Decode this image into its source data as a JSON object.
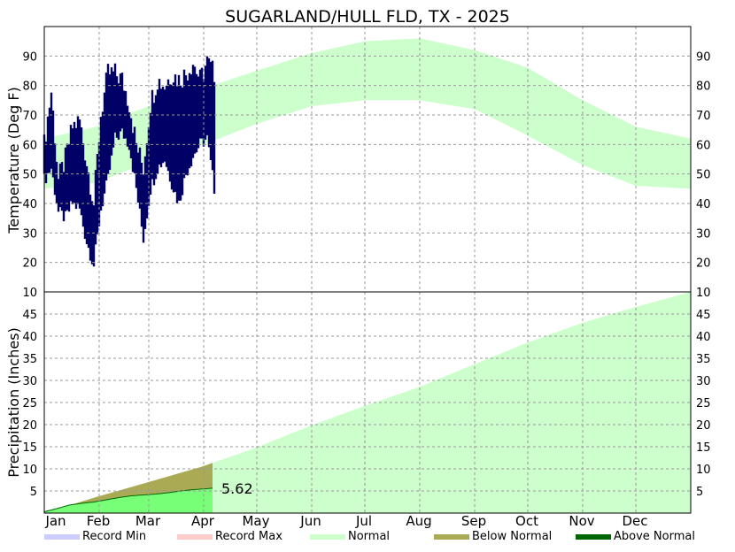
{
  "title": "SUGARLAND/HULL FLD, TX - 2025",
  "colors": {
    "record_min": "#ccccff",
    "record_max": "#ffcccc",
    "normal": "#ccffcc",
    "below_normal": "#aaaa55",
    "above_normal": "#006600",
    "observed_precip": "#77ff77",
    "temp_line": "#000066",
    "grid": "#999999"
  },
  "chart_data": [
    {
      "type": "area",
      "panel": "temperature",
      "ylabel": "Temperature (Deg F)",
      "ylim": [
        10,
        100
      ],
      "yticks": [
        20,
        30,
        40,
        50,
        60,
        70,
        80,
        90
      ],
      "xlim": [
        1,
        366
      ],
      "months": [
        "Jan",
        "Feb",
        "Mar",
        "Apr",
        "May",
        "Jun",
        "Jul",
        "Aug",
        "Sep",
        "Oct",
        "Nov",
        "Dec"
      ],
      "month_start_days": [
        1,
        32,
        60,
        91,
        121,
        152,
        182,
        213,
        244,
        274,
        305,
        335
      ],
      "grid": true,
      "normal_band": {
        "name": "Normal",
        "x": [
          1,
          30,
          60,
          91,
          121,
          152,
          182,
          213,
          244,
          274,
          305,
          335,
          366
        ],
        "low": [
          45,
          47,
          54,
          60,
          67,
          73,
          75,
          75,
          72,
          63,
          53,
          46,
          45
        ],
        "high": [
          62,
          66,
          73,
          79,
          85,
          91,
          95,
          96,
          92,
          86,
          75,
          66,
          62
        ]
      },
      "observed_daily": {
        "x": [
          1,
          5,
          9,
          13,
          17,
          21,
          25,
          29,
          33,
          37,
          41,
          45,
          49,
          53,
          57,
          61,
          65,
          69,
          73,
          77,
          81,
          85,
          89,
          93,
          97
        ],
        "low": [
          48,
          52,
          37,
          35,
          40,
          38,
          27,
          19,
          38,
          48,
          62,
          64,
          60,
          45,
          28,
          45,
          52,
          55,
          47,
          40,
          50,
          56,
          60,
          62,
          45
        ],
        "high": [
          60,
          78,
          48,
          55,
          66,
          68,
          54,
          40,
          70,
          84,
          84,
          82,
          74,
          60,
          52,
          74,
          82,
          80,
          84,
          82,
          84,
          88,
          82,
          88,
          84
        ]
      }
    },
    {
      "type": "area",
      "panel": "precipitation",
      "ylabel": "Precipitation (Inches)",
      "ylim": [
        0,
        50
      ],
      "yticks": [
        5,
        10,
        15,
        20,
        25,
        30,
        35,
        40,
        45
      ],
      "xlim": [
        1,
        366
      ],
      "grid": true,
      "normal_accumulation": {
        "name": "Normal",
        "x": [
          1,
          31,
          59,
          90,
          120,
          151,
          181,
          212,
          243,
          273,
          304,
          334,
          366
        ],
        "values": [
          0,
          3.7,
          6.9,
          10.5,
          14.7,
          19.7,
          24.1,
          28.4,
          33.5,
          38.4,
          42.9,
          46.5,
          50
        ]
      },
      "observed_accumulation": {
        "x": [
          1,
          8,
          15,
          22,
          29,
          36,
          43,
          50,
          57,
          64,
          71,
          78,
          85,
          92,
          96
        ],
        "values": [
          0.3,
          1.0,
          1.8,
          2.2,
          2.5,
          3.0,
          3.5,
          3.9,
          4.1,
          4.3,
          4.6,
          5.0,
          5.3,
          5.5,
          5.62
        ]
      },
      "total_label": "5.62",
      "total_label_x": 97,
      "total_value": 5.62
    }
  ],
  "legend": [
    {
      "label": "Record Min",
      "color": "#ccccff"
    },
    {
      "label": "Record Max",
      "color": "#ffcccc"
    },
    {
      "label": "Normal",
      "color": "#ccffcc"
    },
    {
      "label": "Below Normal",
      "color": "#aaaa55"
    },
    {
      "label": "Above Normal",
      "color": "#006600"
    }
  ]
}
